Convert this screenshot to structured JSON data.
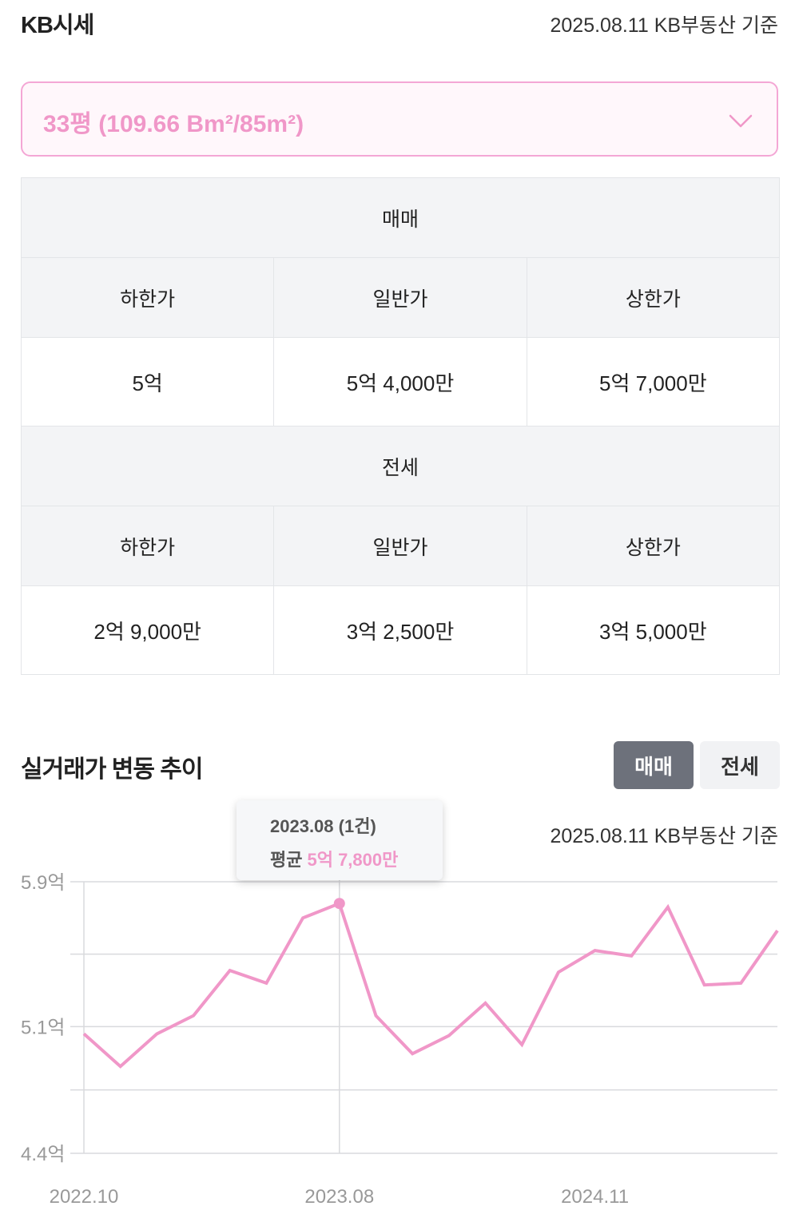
{
  "header": {
    "title": "KB시세",
    "date": "2025.08.11 KB부동산 기준"
  },
  "area_select": {
    "value": "33평 (109.66 Bm²/85m²)"
  },
  "sale": {
    "title": "매매",
    "cols": [
      "하한가",
      "일반가",
      "상한가"
    ],
    "values": [
      "5억",
      "5억 4,000만",
      "5억 7,000만"
    ]
  },
  "jeonse": {
    "title": "전세",
    "cols": [
      "하한가",
      "일반가",
      "상한가"
    ],
    "values": [
      "2억 9,000만",
      "3억 2,500만",
      "3억 5,000만"
    ]
  },
  "trend": {
    "title": "실거래가 변동 추이",
    "tabs": {
      "sale": "매매",
      "rent": "전세",
      "active": "sale"
    },
    "date": "2025.08.11 KB부동산 기준",
    "tooltip": {
      "date": "2023.08 (1건)",
      "label": "평균",
      "value": "5억 7,800만"
    }
  },
  "colors": {
    "accent": "#f097c8",
    "border_accent": "#f4a7d5",
    "tab_active": "#6d717b"
  },
  "chart_data": {
    "type": "line",
    "y_tick_labels": [
      "5.9억",
      "5.1억",
      "4.4억"
    ],
    "y_ticks": [
      5.9,
      5.1,
      4.4
    ],
    "x_tick_labels": [
      "2022.10",
      "2023.08",
      "2024.11"
    ],
    "ylim": [
      4.4,
      5.9
    ],
    "grid": true,
    "series": [
      {
        "color": "#f097c8",
        "values": [
          5.06,
          4.88,
          5.06,
          5.16,
          5.41,
          5.34,
          5.7,
          5.78,
          5.16,
          4.95,
          5.05,
          5.23,
          5.0,
          5.4,
          5.52,
          5.49,
          5.76,
          5.33,
          5.34,
          5.63
        ]
      }
    ],
    "highlight": {
      "index": 7,
      "label": "2023.08",
      "value": 5.78
    },
    "x_tick_index": [
      0,
      7,
      14
    ]
  }
}
